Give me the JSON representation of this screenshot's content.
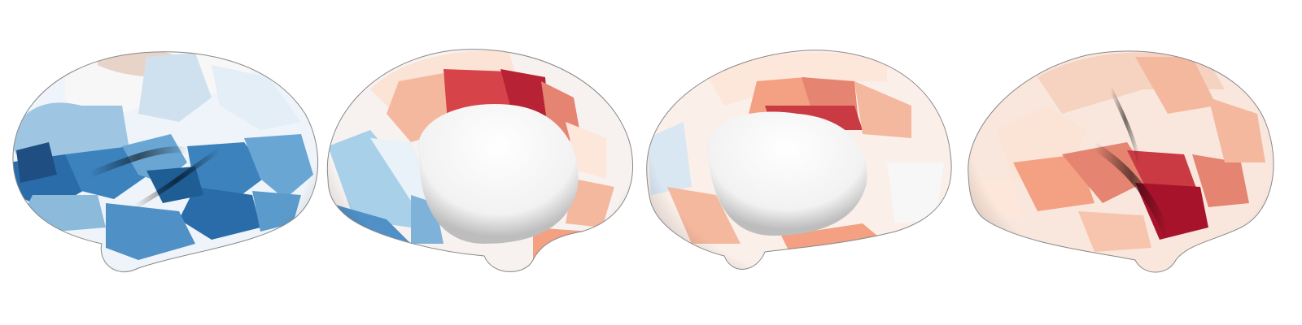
{
  "figure": {
    "background_color": "#ffffff",
    "colormap": {
      "name": "RdBu_r",
      "low_color": "#2166ac",
      "mid_color": "#f7f7f7",
      "high_color": "#b2182b"
    },
    "views": [
      {
        "name": "left-hemisphere-lateral",
        "hemisphere": "left",
        "view": "lateral",
        "dominant_sign": "negative"
      },
      {
        "name": "left-hemisphere-medial",
        "hemisphere": "left",
        "view": "medial",
        "dominant_sign": "mixed"
      },
      {
        "name": "right-hemisphere-medial",
        "hemisphere": "right",
        "view": "medial",
        "dominant_sign": "positive"
      },
      {
        "name": "right-hemisphere-lateral",
        "hemisphere": "right",
        "view": "lateral",
        "dominant_sign": "positive"
      }
    ]
  }
}
